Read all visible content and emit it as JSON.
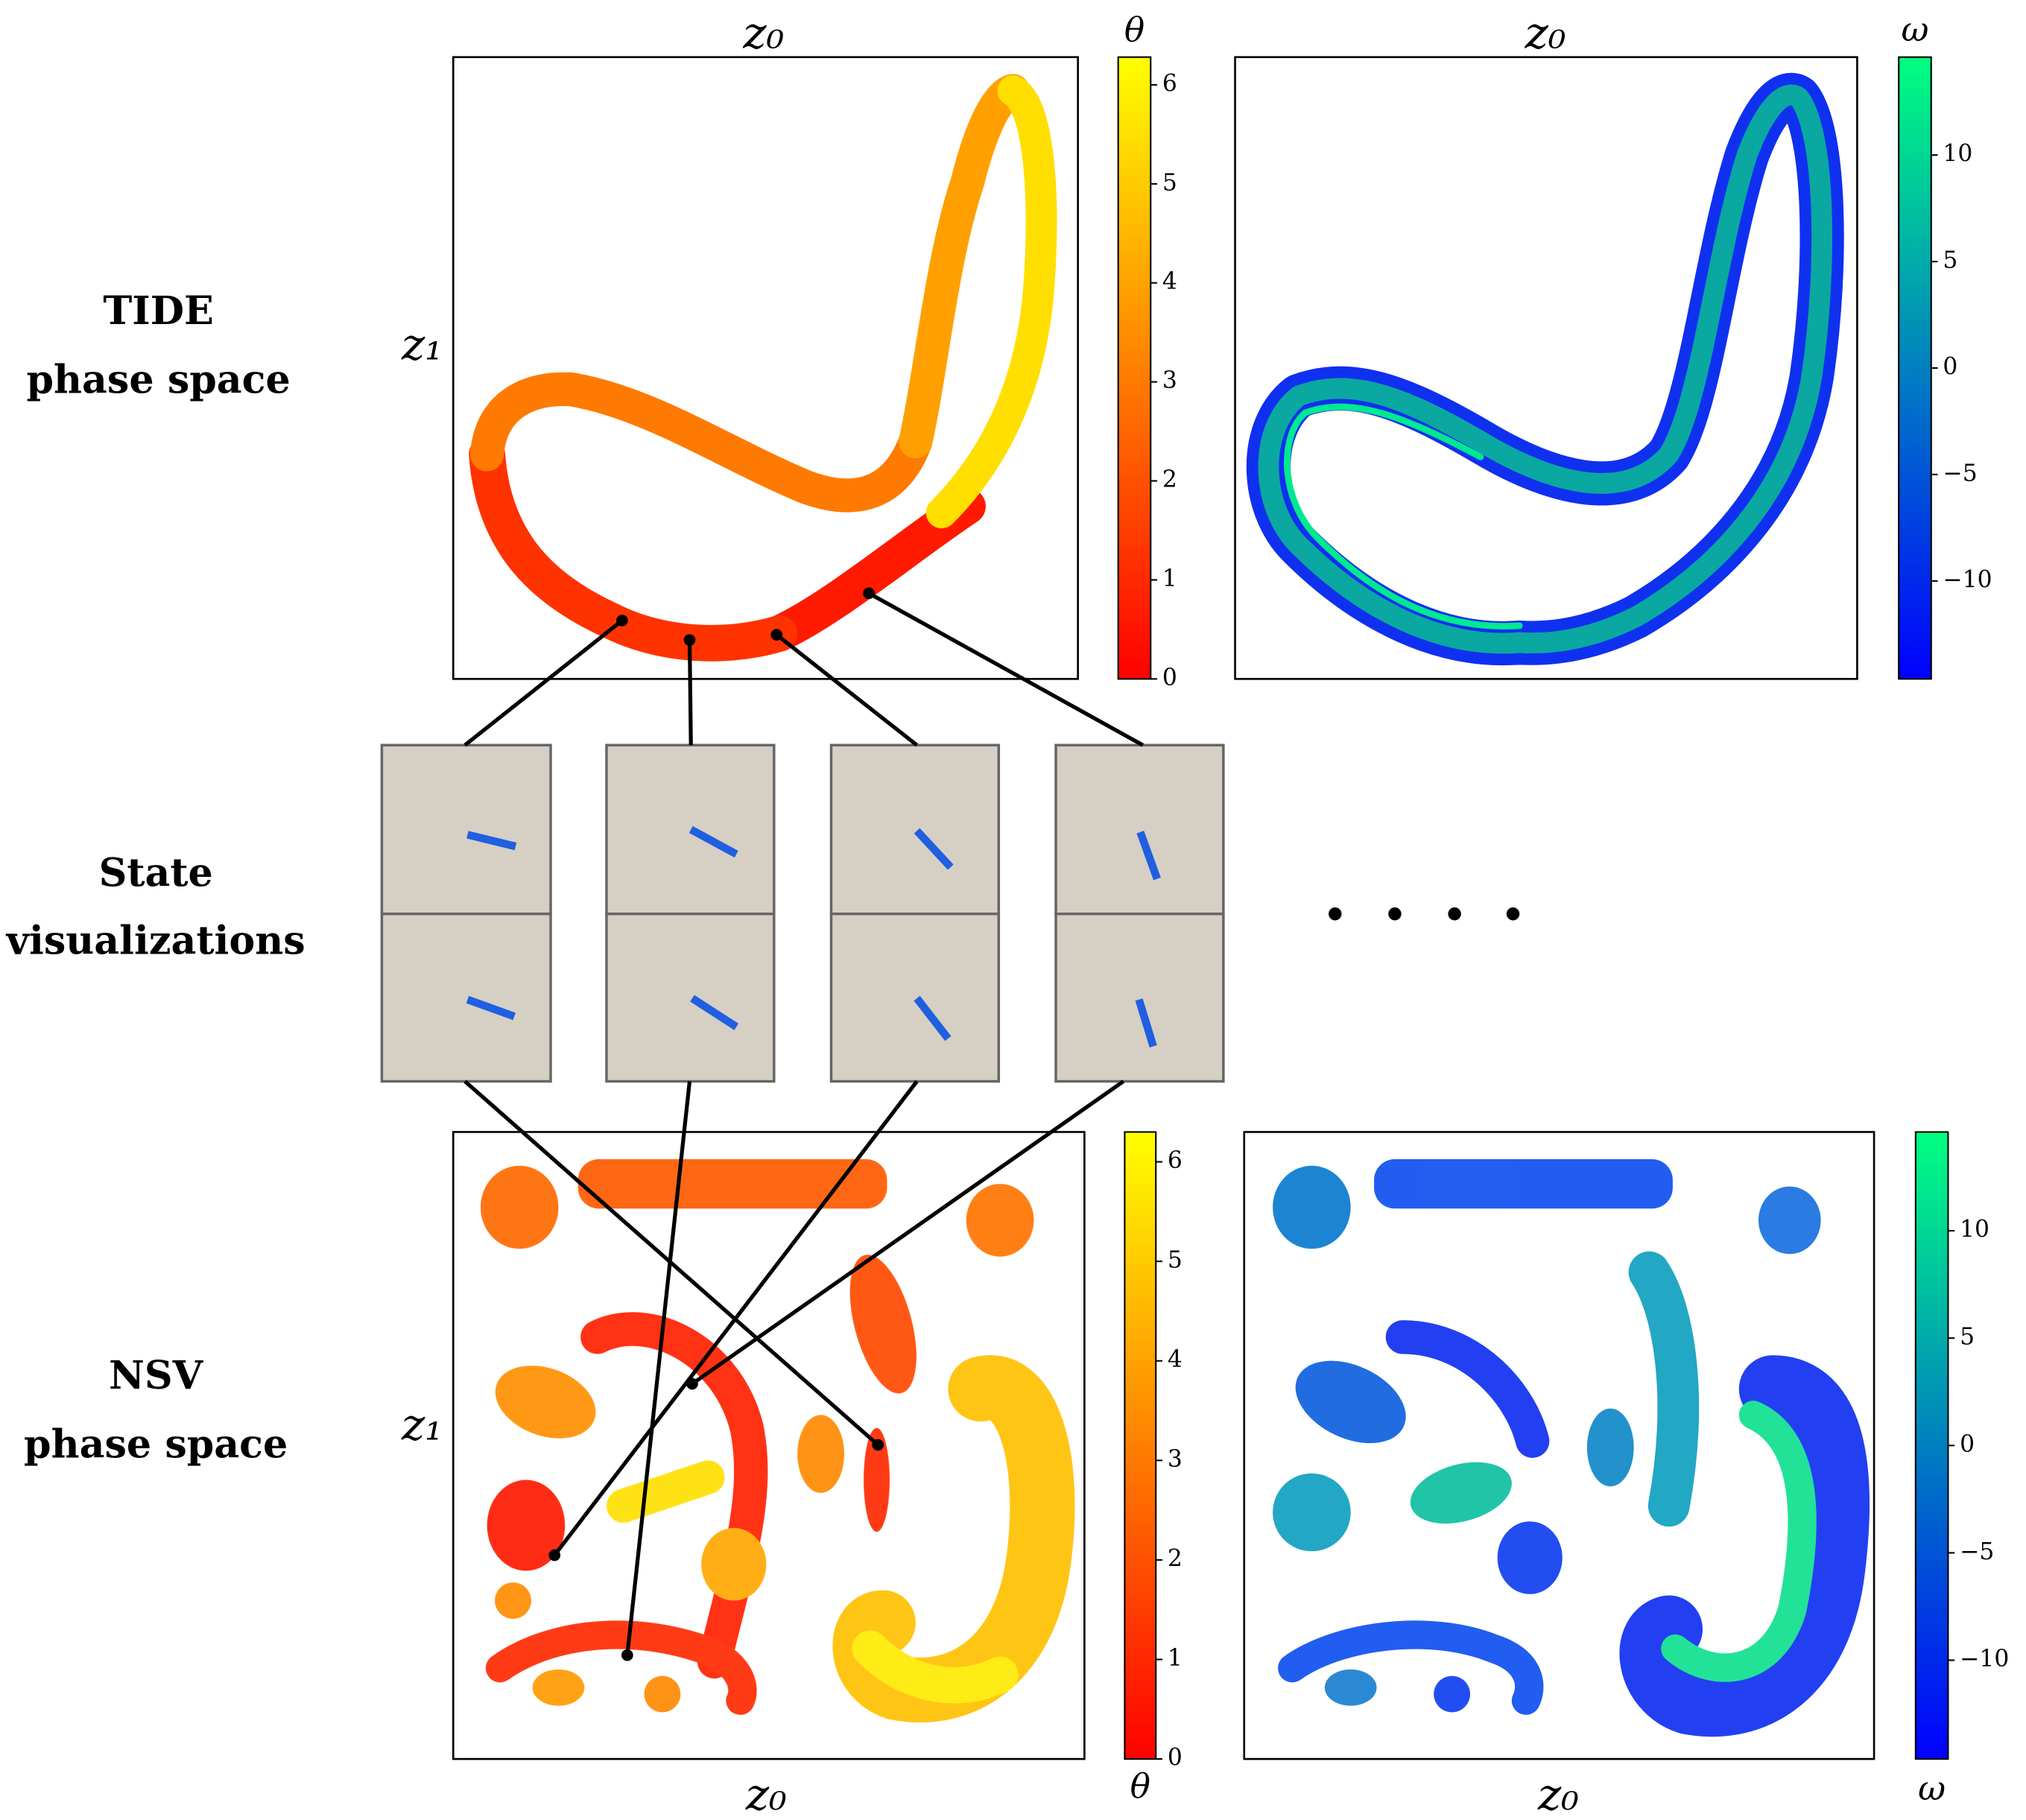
{
  "row_labels": [
    {
      "lines": [
        "TIDE",
        "phase space"
      ]
    },
    {
      "lines": [
        "State",
        "visualizations"
      ]
    },
    {
      "lines": [
        "NSV",
        "phase space"
      ]
    }
  ],
  "panels": [
    {
      "x_label": "z₀",
      "y_label": "z₁",
      "colorbar": {
        "label": "θ",
        "lim": [
          0,
          6.28
        ],
        "ticks": [
          0,
          1,
          2,
          3,
          4,
          5,
          6
        ]
      }
    },
    {
      "x_label": "z₀",
      "colorbar": {
        "label": "ω",
        "lim": [
          -14.6,
          14.6
        ],
        "ticks": [
          {
            "value": -10,
            "label": "−10"
          },
          {
            "value": -5,
            "label": "−5"
          },
          0,
          5,
          10
        ]
      }
    },
    {
      "x_label": "z₀",
      "y_label": "z₁",
      "colorbar": {
        "label": "θ",
        "lim": [
          0,
          6.3
        ],
        "ticks": [
          0,
          1,
          2,
          3,
          4,
          5,
          6
        ]
      }
    },
    {
      "x_label": "z₀",
      "colorbar": {
        "label": "ω",
        "lim": [
          -14.6,
          14.6
        ],
        "ticks": [
          {
            "value": -10,
            "label": "−10"
          },
          {
            "value": -5,
            "label": "−5"
          },
          0,
          5,
          10
        ]
      }
    }
  ]
}
